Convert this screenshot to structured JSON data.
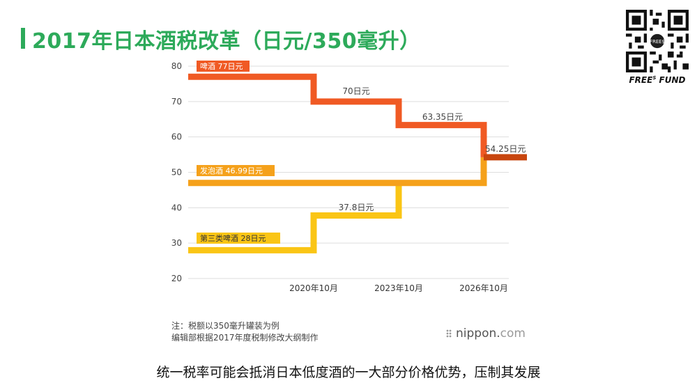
{
  "title": "2017年日本酒税改革（日元/350毫升）",
  "brand": {
    "text": "FREE",
    "sup": "S",
    "text2": " FUND",
    "qr_badge": "FREE$"
  },
  "footnote": {
    "line1": "注：税额以350毫升罐装为例",
    "line2": "编辑部根据2017年度税制修改大纲制作"
  },
  "logo": {
    "main": "nippon.",
    "suffix": "com"
  },
  "caption": "统一税率可能会抵消日本低度酒的一大部分价格优势，压制其发展",
  "chart_data": {
    "type": "line",
    "step": true,
    "ylim": [
      20,
      80
    ],
    "yticks": [
      20,
      30,
      40,
      50,
      60,
      70,
      80
    ],
    "xticks": [
      "2020年10月",
      "2023年10月",
      "2026年10月"
    ],
    "grid": true,
    "series": [
      {
        "name": "啤酒",
        "label": "啤酒 77日元",
        "color": "#f05a24",
        "points": [
          [
            "start",
            77
          ],
          [
            "2020年10月",
            77
          ],
          [
            "2020年10月",
            70
          ],
          [
            "2023年10月",
            70
          ],
          [
            "2023年10月",
            63.35
          ],
          [
            "2026年10月",
            63.35
          ],
          [
            "2026年10月",
            54.25
          ]
        ],
        "annotations": [
          "70日元",
          "63.35日元"
        ]
      },
      {
        "name": "发泡酒",
        "label": "发泡酒 46.99日元",
        "color": "#f5a11b",
        "points": [
          [
            "start",
            46.99
          ],
          [
            "2026年10月",
            46.99
          ],
          [
            "2026年10月",
            54.25
          ]
        ]
      },
      {
        "name": "第三类啤酒",
        "label": "第三类啤酒 28日元",
        "color": "#fac515",
        "points": [
          [
            "start",
            28
          ],
          [
            "2020年10月",
            28
          ],
          [
            "2020年10月",
            37.8
          ],
          [
            "2023年10月",
            37.8
          ],
          [
            "2023年10月",
            46.99
          ]
        ],
        "annotations": [
          "37.8日元"
        ]
      }
    ],
    "final": {
      "value": 54.25,
      "label": "54.25日元",
      "color": "#c8460f"
    }
  }
}
